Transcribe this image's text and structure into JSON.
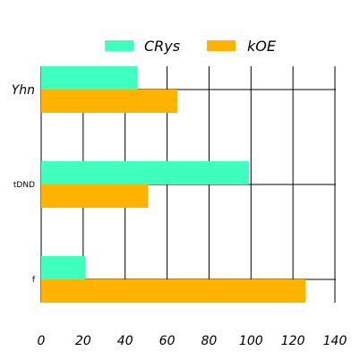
{
  "chart_data": {
    "type": "bar",
    "orientation": "horizontal",
    "categories": [
      "Yhn",
      "tDND",
      "f"
    ],
    "series": [
      {
        "name": "CRys",
        "color": "#3fffbf",
        "values": [
          46,
          99,
          21
        ]
      },
      {
        "name": "kOE",
        "color": "#ffb300",
        "values": [
          65,
          51,
          126
        ]
      }
    ],
    "x_ticks": [
      0,
      20,
      40,
      60,
      80,
      100,
      120,
      140
    ],
    "xlim": [
      0,
      140
    ],
    "grid": true,
    "legend_position": "top-center",
    "title": "",
    "xlabel": "",
    "ylabel": ""
  }
}
